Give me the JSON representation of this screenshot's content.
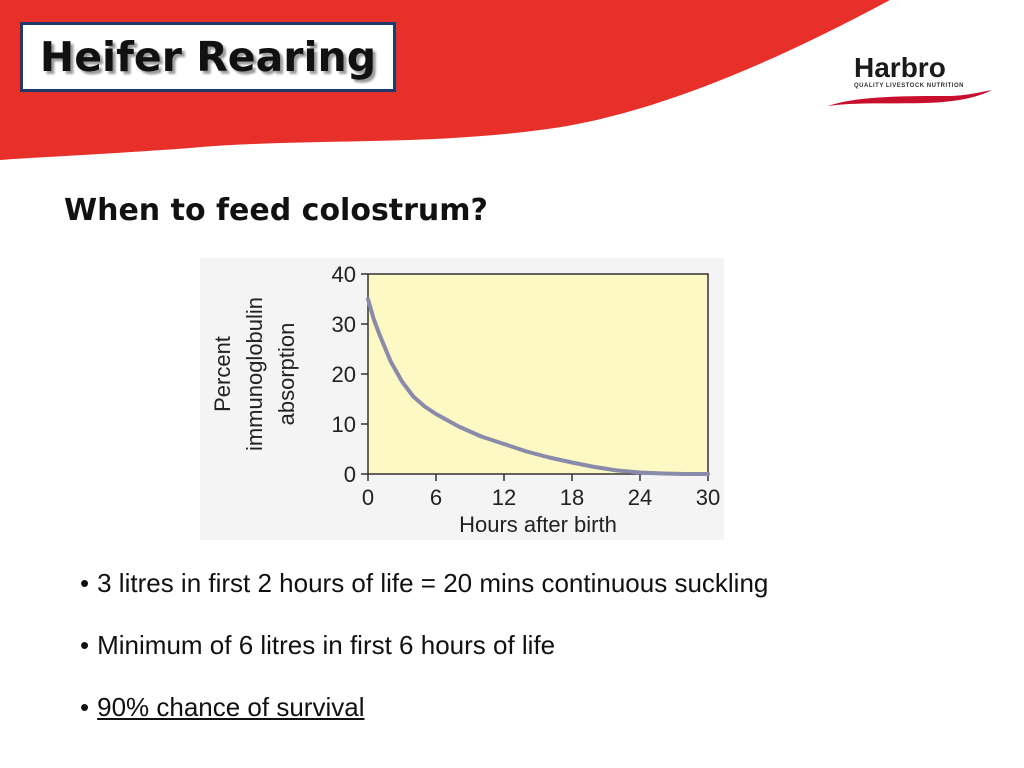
{
  "header": {
    "title": "Heifer Rearing",
    "banner_color": "#e8302a",
    "title_border_color": "#1f3a6b"
  },
  "logo": {
    "name": "Harbro",
    "tagline": "QUALITY LIVESTOCK NUTRITION",
    "swoosh_color": "#c8102e"
  },
  "main": {
    "question": "When to feed colostrum?",
    "bullets": [
      {
        "text": "3 litres in first 2 hours of life = 20 mins continuous suckling"
      },
      {
        "text": "Minimum of 6 litres in first 6 hours of life"
      },
      {
        "text": "90% chance of survival",
        "underline": true
      }
    ]
  },
  "chart_data": {
    "type": "line",
    "xlabel": "Hours after birth",
    "ylabel_lines": [
      "Percent",
      "immunoglobulin",
      "absorption"
    ],
    "xlim": [
      0,
      30
    ],
    "ylim": [
      0,
      40
    ],
    "x_ticks": [
      "0",
      "6",
      "12",
      "18",
      "24",
      "30"
    ],
    "y_ticks": [
      "0",
      "10",
      "20",
      "30",
      "40"
    ],
    "x_tick_values": [
      0,
      6,
      12,
      18,
      24,
      30
    ],
    "y_tick_values": [
      0,
      10,
      20,
      30,
      40
    ],
    "grid": false,
    "plot_background": "#fdf9c4",
    "line_color": "#8a8aaa",
    "series": [
      {
        "x": [
          0,
          0.5,
          1,
          2,
          3,
          4,
          5,
          6,
          8,
          10,
          12,
          14,
          16,
          18,
          20,
          22,
          24,
          26,
          28,
          30
        ],
        "y": [
          35,
          31,
          28,
          22.5,
          18.5,
          15.5,
          13.5,
          12,
          9.5,
          7.5,
          6,
          4.5,
          3.3,
          2.3,
          1.4,
          0.7,
          0.3,
          0.1,
          0,
          0
        ]
      }
    ]
  }
}
